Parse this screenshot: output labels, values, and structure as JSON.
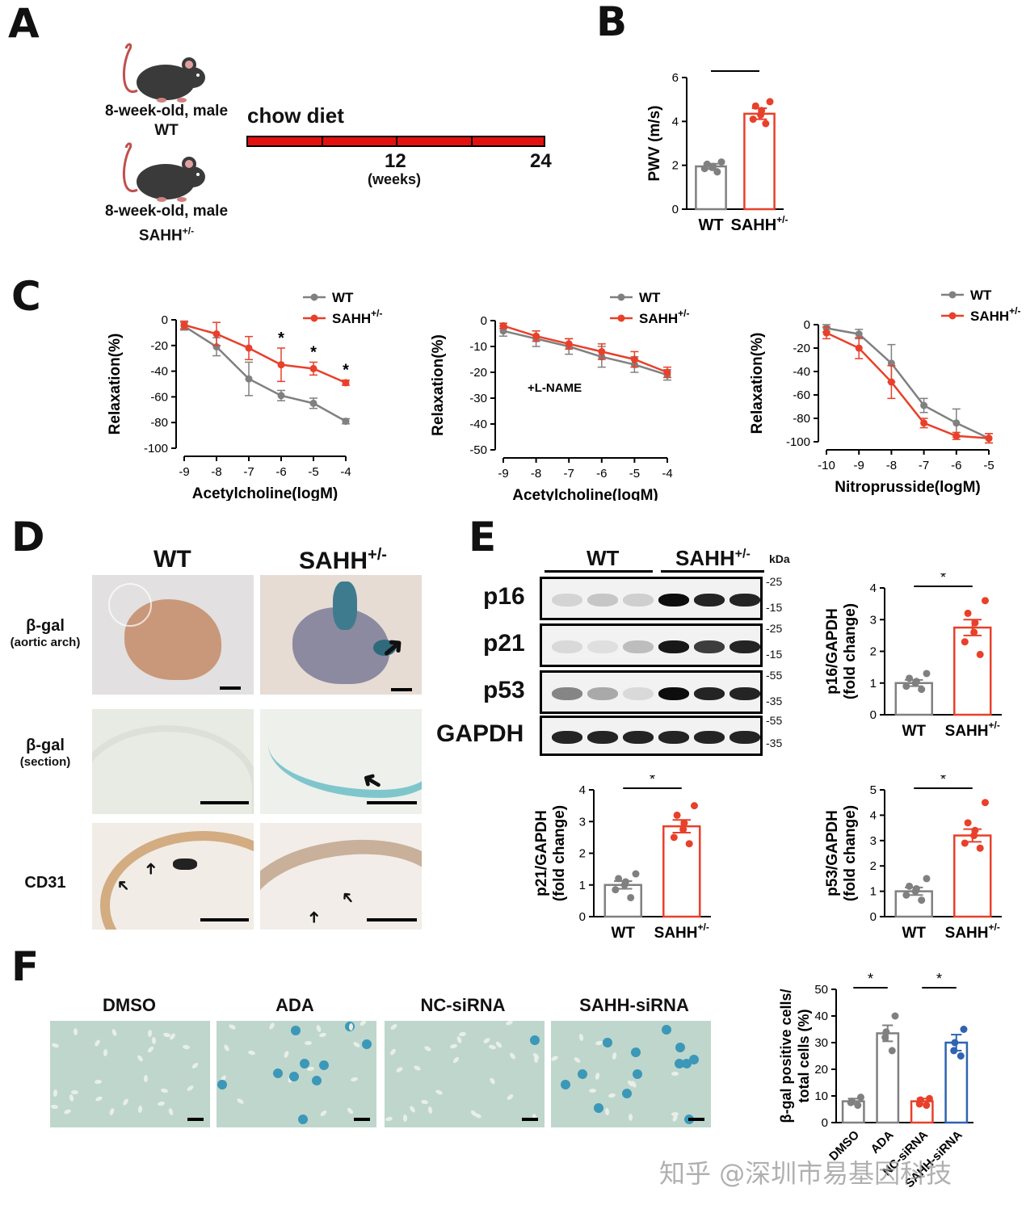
{
  "panel_letters": {
    "a": "A",
    "b": "B",
    "c": "C",
    "d": "D",
    "e": "E",
    "f": "F"
  },
  "colors": {
    "wt": "#808080",
    "sahh": "#e8402a",
    "blue": "#2e63b0",
    "red_bar": "#e31010"
  },
  "panel_a": {
    "mouse1_line1": "8-week-old, male",
    "mouse1_line2": "WT",
    "mouse2_line1": "8-week-old, male",
    "mouse2_line2": "SAHH",
    "mouse2_sup": "+/-",
    "diet_label": "chow diet",
    "tick_mid": "12",
    "tick_end": "24",
    "unit": "(weeks)",
    "icon": "mouse-icon"
  },
  "watermark": "知乎 @深圳市易基因科技",
  "panel_d": {
    "col_wt": "WT",
    "col_sahh": "SAHH",
    "col_sahh_sup": "+/-",
    "row1_l1": "β-gal",
    "row1_l2": "(aortic arch)",
    "row2_l1": "β-gal",
    "row2_l2": "(section)",
    "row3_l1": "CD31"
  },
  "panel_e_blot": {
    "group_wt": "WT",
    "group_sahh": "SAHH",
    "group_sahh_sup": "+/-",
    "kda": "kDa",
    "bands": [
      {
        "name": "p16",
        "markers": [
          "25",
          "15"
        ]
      },
      {
        "name": "p21",
        "markers": [
          "25",
          "15"
        ]
      },
      {
        "name": "p53",
        "markers": [
          "55",
          "35"
        ]
      },
      {
        "name": "GAPDH",
        "markers": [
          "55",
          "35"
        ]
      }
    ]
  },
  "panel_f_images": [
    "DMSO",
    "ADA",
    "NC-siRNA",
    "SAHH-siRNA"
  ],
  "chart_data": [
    {
      "id": "B",
      "type": "bar",
      "ylabel": "PWV (m/s)",
      "ylim": [
        0,
        6
      ],
      "yticks": [
        "0",
        "2",
        "4",
        "6"
      ],
      "categories": [
        "WT",
        "SAHH"
      ],
      "category_sup": [
        "",
        "+/-"
      ],
      "values": [
        1.95,
        4.35
      ],
      "sem": [
        0.12,
        0.25
      ],
      "points": [
        [
          1.7,
          1.85,
          1.9,
          1.95,
          2.05,
          2.15
        ],
        [
          3.9,
          4.1,
          4.3,
          4.5,
          4.7,
          4.9
        ]
      ],
      "significance": "*"
    },
    {
      "id": "C1",
      "type": "line",
      "xlabel": "Acetylcholine(logM)",
      "ylabel": "Relaxation(%)",
      "xlim": [
        -9,
        -4
      ],
      "ylim": [
        -100,
        0
      ],
      "xticks": [
        "-9",
        "-8",
        "-7",
        "-6",
        "-5",
        "-4"
      ],
      "yticks": [
        "0",
        "-20",
        "-40",
        "-60",
        "-80",
        "-100"
      ],
      "x": [
        -9,
        -8,
        -7,
        -6,
        -5,
        -4
      ],
      "series": [
        {
          "name": "WT",
          "values": [
            -5,
            -21,
            -46,
            -59,
            -65,
            -79
          ],
          "sem": [
            3,
            7,
            13,
            4,
            4,
            2
          ]
        },
        {
          "name": "SAHH",
          "name_sup": "+/-",
          "values": [
            -4,
            -11,
            -22,
            -35,
            -38,
            -49
          ],
          "sem": [
            3,
            9,
            9,
            13,
            5,
            2
          ]
        }
      ],
      "sig_x": [
        -6,
        -5,
        -4
      ],
      "sig_mark": "*"
    },
    {
      "id": "C2",
      "type": "line",
      "xlabel": "Acetylcholine(logM)",
      "ylabel": "Relaxation(%)",
      "xlim": [
        -9,
        -4
      ],
      "ylim": [
        -50,
        0
      ],
      "xticks": [
        "-9",
        "-8",
        "-7",
        "-6",
        "-5",
        "-4"
      ],
      "yticks": [
        "0",
        "-10",
        "-20",
        "-30",
        "-40",
        "-50"
      ],
      "annotation": "+L-NAME",
      "x": [
        -9,
        -8,
        -7,
        -6,
        -5,
        -4
      ],
      "series": [
        {
          "name": "WT",
          "values": [
            -4,
            -7,
            -10,
            -14,
            -17,
            -21
          ],
          "sem": [
            2,
            3,
            3,
            4,
            3,
            2
          ]
        },
        {
          "name": "SAHH",
          "name_sup": "+/-",
          "values": [
            -2,
            -6,
            -9,
            -12,
            -15,
            -20
          ],
          "sem": [
            1,
            2,
            2,
            3,
            3,
            2
          ]
        }
      ]
    },
    {
      "id": "C3",
      "type": "line",
      "xlabel": "Nitroprusside(logM)",
      "ylabel": "Relaxation(%)",
      "xlim": [
        -10,
        -5
      ],
      "ylim": [
        -100,
        0
      ],
      "xticks": [
        "-10",
        "-9",
        "-8",
        "-7",
        "-6",
        "-5"
      ],
      "yticks": [
        "0",
        "-20",
        "-40",
        "-60",
        "-80",
        "-100"
      ],
      "x": [
        -10,
        -9,
        -8,
        -7,
        -6,
        -5
      ],
      "series": [
        {
          "name": "WT",
          "values": [
            -3,
            -8,
            -33,
            -69,
            -84,
            -97
          ],
          "sem": [
            3,
            4,
            16,
            6,
            12,
            4
          ]
        },
        {
          "name": "SAHH",
          "name_sup": "+/-",
          "values": [
            -7,
            -20,
            -49,
            -84,
            -95,
            -97
          ],
          "sem": [
            5,
            9,
            14,
            4,
            3,
            4
          ]
        }
      ]
    },
    {
      "id": "E1",
      "type": "bar",
      "ylabel_l1": "p16/GAPDH",
      "ylabel_l2": "(fold change)",
      "ylim": [
        0,
        4
      ],
      "yticks": [
        "0",
        "1",
        "2",
        "3",
        "4"
      ],
      "categories": [
        "WT",
        "SAHH"
      ],
      "category_sup": [
        "",
        "+/-"
      ],
      "values": [
        1.0,
        2.75
      ],
      "sem": [
        0.1,
        0.25
      ],
      "points": [
        [
          0.8,
          0.9,
          1.0,
          1.05,
          1.15,
          1.3
        ],
        [
          1.9,
          2.3,
          2.6,
          2.9,
          3.2,
          3.6
        ]
      ],
      "significance": "*"
    },
    {
      "id": "E2",
      "type": "bar",
      "ylabel_l1": "p21/GAPDH",
      "ylabel_l2": "(fold change)",
      "ylim": [
        0,
        4
      ],
      "yticks": [
        "0",
        "1",
        "2",
        "3",
        "4"
      ],
      "categories": [
        "WT",
        "SAHH"
      ],
      "category_sup": [
        "",
        "+/-"
      ],
      "values": [
        1.0,
        2.85
      ],
      "sem": [
        0.12,
        0.2
      ],
      "points": [
        [
          0.6,
          0.85,
          1.0,
          1.1,
          1.2,
          1.35
        ],
        [
          2.3,
          2.5,
          2.75,
          2.95,
          3.2,
          3.5
        ]
      ],
      "significance": "*"
    },
    {
      "id": "E3",
      "type": "bar",
      "ylabel_l1": "p53/GAPDH",
      "ylabel_l2": "(fold change)",
      "ylim": [
        0,
        5
      ],
      "yticks": [
        "0",
        "1",
        "2",
        "3",
        "4",
        "5"
      ],
      "categories": [
        "WT",
        "SAHH"
      ],
      "category_sup": [
        "",
        "+/-"
      ],
      "values": [
        1.0,
        3.2
      ],
      "sem": [
        0.15,
        0.25
      ],
      "points": [
        [
          0.65,
          0.85,
          1.0,
          1.1,
          1.2,
          1.5
        ],
        [
          2.7,
          2.9,
          3.2,
          3.4,
          3.7,
          4.5
        ]
      ],
      "significance": "*"
    },
    {
      "id": "F",
      "type": "bar",
      "ylabel_l1": "β-gal positive cells/",
      "ylabel_l2": "total cells (%)",
      "ylim": [
        0,
        50
      ],
      "yticks": [
        "0",
        "10",
        "20",
        "30",
        "40",
        "50"
      ],
      "categories": [
        "DMSO",
        "ADA",
        "NC-siRNA",
        "SAHH-siRNA"
      ],
      "values": [
        8,
        33.5,
        8,
        30
      ],
      "sem": [
        1,
        3,
        1,
        3
      ],
      "points": [
        [
          6.5,
          7.5,
          8,
          9.5
        ],
        [
          27,
          32,
          34,
          40
        ],
        [
          6.5,
          7,
          8.5,
          9
        ],
        [
          25,
          27,
          30,
          35
        ]
      ],
      "significance": [
        "*",
        "*"
      ]
    }
  ]
}
